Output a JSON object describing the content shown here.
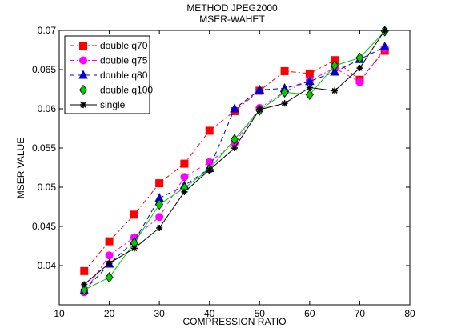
{
  "chart_data": {
    "type": "line",
    "title_lines": [
      "METHOD JPEG2000",
      "MSER-WAHET"
    ],
    "xlabel": "COMPRESSION RATIO",
    "ylabel": "MSER VALUE",
    "xlim": [
      10,
      80
    ],
    "ylim": [
      0.035,
      0.07
    ],
    "xticks": [
      10,
      20,
      30,
      40,
      50,
      60,
      70,
      80
    ],
    "yticks": [
      0.04,
      0.045,
      0.05,
      0.055,
      0.06,
      0.065,
      0.07
    ],
    "xtick_labels": [
      "10",
      "20",
      "30",
      "40",
      "50",
      "60",
      "70",
      "80"
    ],
    "ytick_labels": [
      "0.04",
      "0.045",
      "0.05",
      "0.055",
      "0.06",
      "0.065",
      "0.07"
    ],
    "grid": false,
    "legend_position": "top-left",
    "x": [
      15,
      20,
      25,
      30,
      35,
      40,
      45,
      50,
      55,
      60,
      65,
      70,
      75
    ],
    "series": [
      {
        "name": "double q70",
        "color": "#ff0000",
        "line_style": "dash-dot",
        "marker": "square",
        "values": [
          0.0393,
          0.0431,
          0.0465,
          0.0505,
          0.053,
          0.0572,
          0.0597,
          0.0623,
          0.0648,
          0.0645,
          0.0662,
          0.0637,
          0.0674
        ]
      },
      {
        "name": "double q75",
        "color": "#ff00ff",
        "line_style": "dash-dot",
        "marker": "circle",
        "values": [
          0.0366,
          0.0413,
          0.0436,
          0.0462,
          0.0513,
          0.0532,
          0.0556,
          0.0601,
          0.0622,
          0.0636,
          0.0652,
          0.0634,
          0.0677
        ]
      },
      {
        "name": "double q80",
        "color": "#0000cc",
        "line_style": "dashed",
        "marker": "triangle",
        "values": [
          0.0368,
          0.0402,
          0.0431,
          0.0486,
          0.0502,
          0.0524,
          0.06,
          0.0624,
          0.0626,
          0.0635,
          0.0647,
          0.0663,
          0.0679
        ]
      },
      {
        "name": "double q100",
        "color": "#00cc00",
        "line_style": "solid",
        "marker": "diamond",
        "values": [
          0.0369,
          0.0385,
          0.0429,
          0.0478,
          0.0499,
          0.0523,
          0.0561,
          0.0598,
          0.0621,
          0.0618,
          0.0655,
          0.0665,
          0.0699
        ]
      },
      {
        "name": "single",
        "color": "#000000",
        "line_style": "solid",
        "marker": "star",
        "values": [
          0.0376,
          0.0403,
          0.0422,
          0.0448,
          0.0494,
          0.0522,
          0.055,
          0.0599,
          0.0607,
          0.0627,
          0.0623,
          0.0652,
          0.07
        ]
      }
    ]
  }
}
